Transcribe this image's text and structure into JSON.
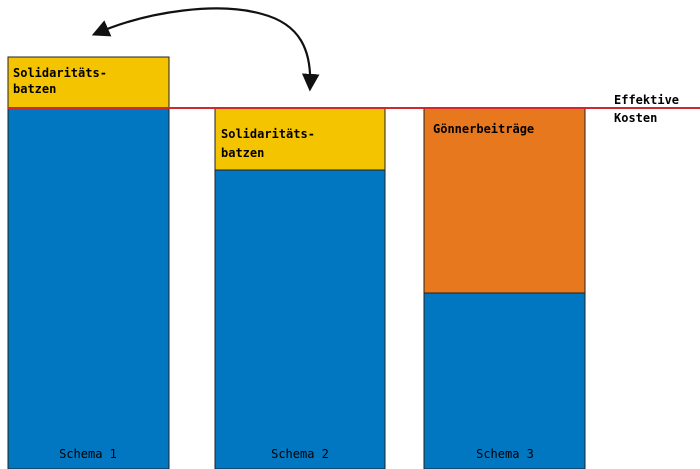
{
  "colors": {
    "base": "#0077c0",
    "solidarity": "#f5c400",
    "patron": "#e8781e",
    "cost_line": "#d0282c",
    "outline": "#222222",
    "arrow": "#111111"
  },
  "schemes": [
    {
      "label": "Schema 1",
      "segments": [
        {
          "kind": "base",
          "text": ""
        },
        {
          "kind": "solidarity",
          "text_lines": [
            "Solidaritäts-",
            "batzen"
          ]
        }
      ]
    },
    {
      "label": "Schema 2",
      "segments": [
        {
          "kind": "base",
          "text": ""
        },
        {
          "kind": "solidarity",
          "text_lines": [
            "Solidaritäts-",
            "batzen"
          ]
        }
      ]
    },
    {
      "label": "Schema 3",
      "segments": [
        {
          "kind": "base",
          "text": ""
        },
        {
          "kind": "patron",
          "text_lines": [
            "Gönnerbeiträge"
          ]
        }
      ]
    }
  ],
  "cost_line": {
    "label_lines": [
      "Effektive",
      "Kosten"
    ]
  },
  "arrow": {
    "description": "curved double-headed arrow",
    "icon": "double-headed-curved-arrow-icon"
  }
}
